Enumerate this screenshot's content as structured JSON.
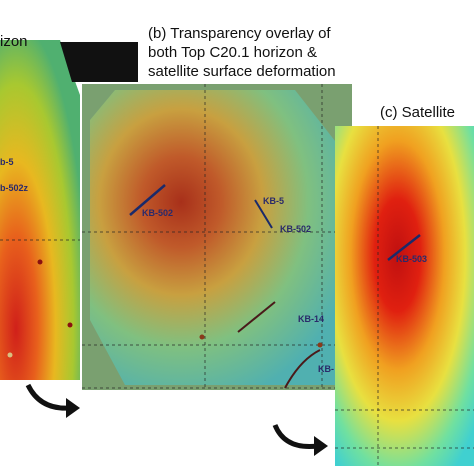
{
  "panels": [
    {
      "title": [
        "izon"
      ],
      "wells": [
        "b-5",
        "b-502z"
      ]
    },
    {
      "title": [
        "(b)  Transparency overlay of",
        "both Top C20.1 horizon &",
        "satellite surface deformation"
      ],
      "wells": [
        "KB-502",
        "KB-5",
        "KB-502",
        "KB-14",
        "KB-"
      ]
    },
    {
      "title": [
        "(c) Satellite"
      ],
      "wells": [
        "KB-503"
      ]
    }
  ]
}
